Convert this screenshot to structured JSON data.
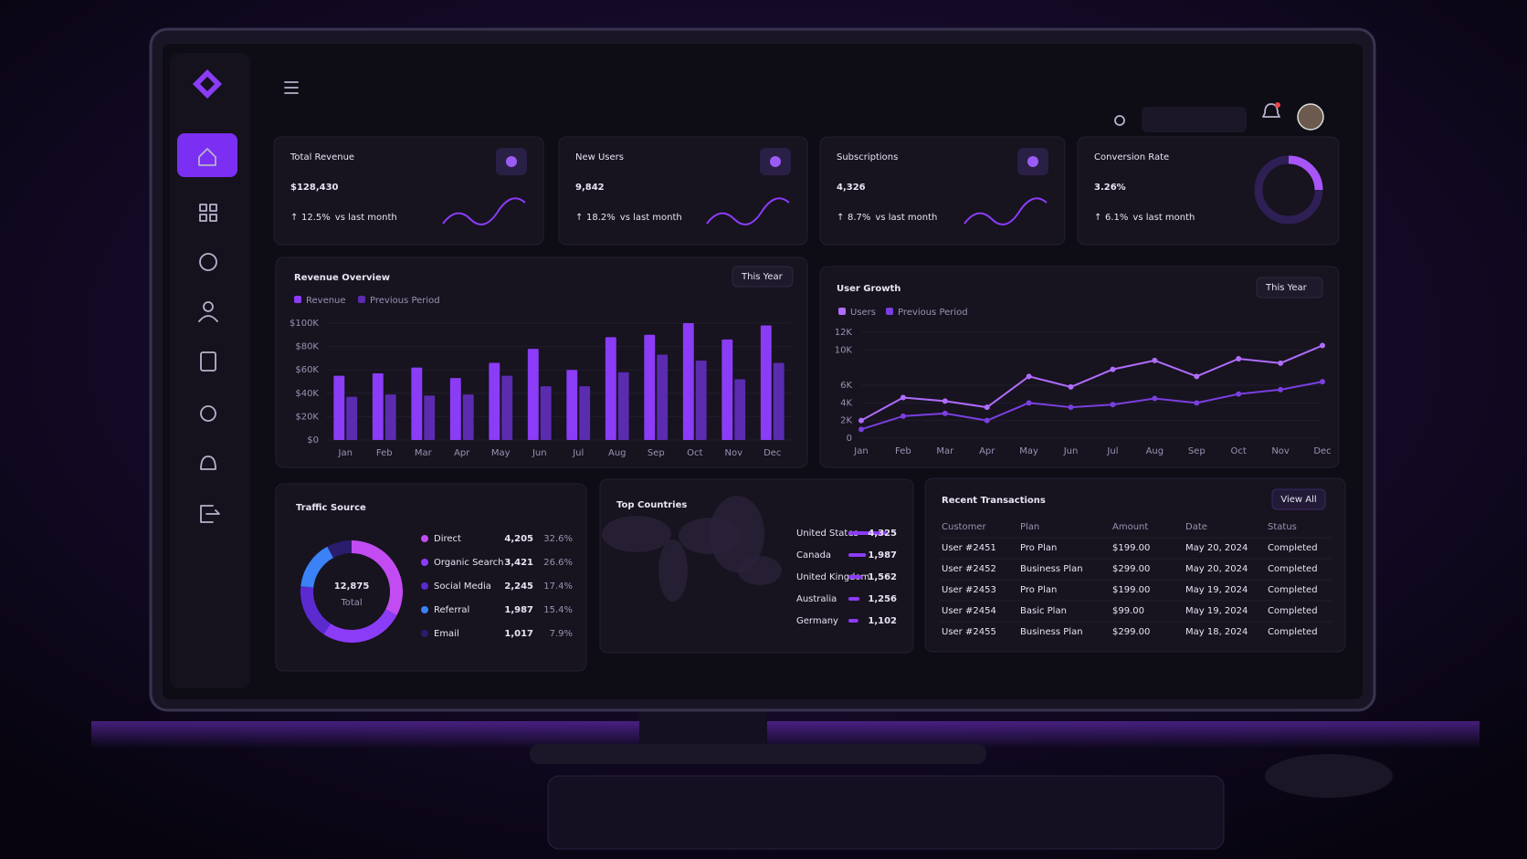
{
  "kpis": [
    {
      "title": "Total Revenue",
      "value": "$128,430",
      "change": "12.5%",
      "note": "vs last month"
    },
    {
      "title": "New Users",
      "value": "9,842",
      "change": "18.2%",
      "note": "vs last month"
    },
    {
      "title": "Subscriptions",
      "value": "4,326",
      "change": "8.7%",
      "note": "vs last month"
    },
    {
      "title": "Conversion Rate",
      "value": "3.26%",
      "change": "6.1%",
      "note": "vs last month"
    }
  ],
  "chart_data": [
    {
      "type": "bar",
      "title": "Revenue Overview",
      "period": "This Year",
      "categories": [
        "Jan",
        "Feb",
        "Mar",
        "Apr",
        "May",
        "Jun",
        "Jul",
        "Aug",
        "Sep",
        "Oct",
        "Nov",
        "Dec"
      ],
      "series": [
        {
          "name": "Revenue",
          "color": "#8b3cf7",
          "values": [
            55000,
            57000,
            62000,
            53000,
            66000,
            78000,
            60000,
            88000,
            90000,
            100000,
            86000,
            98000
          ]
        },
        {
          "name": "Previous Period",
          "color": "#5b2bb0",
          "values": [
            37000,
            39000,
            38000,
            39000,
            55000,
            46000,
            46000,
            58000,
            73000,
            68000,
            52000,
            66000
          ]
        }
      ],
      "ylim": [
        0,
        100000
      ],
      "yticks": [
        {
          "value": 0,
          "label": "$0"
        },
        {
          "value": 20000,
          "label": "$20K"
        },
        {
          "value": 40000,
          "label": "$40K"
        },
        {
          "value": 60000,
          "label": "$60K"
        },
        {
          "value": 80000,
          "label": "$80K"
        },
        {
          "value": 100000,
          "label": "$100K"
        }
      ]
    },
    {
      "type": "line",
      "title": "User Growth",
      "period": "This Year",
      "categories": [
        "Jan",
        "Feb",
        "Mar",
        "Apr",
        "May",
        "Jun",
        "Jul",
        "Aug",
        "Sep",
        "Oct",
        "Nov",
        "Dec"
      ],
      "series": [
        {
          "name": "Users",
          "color": "#b06cff",
          "values": [
            2000,
            4600,
            4200,
            3500,
            7000,
            5800,
            7800,
            8800,
            7000,
            9000,
            8500,
            10500
          ]
        },
        {
          "name": "Previous Period",
          "color": "#7a3fe0",
          "values": [
            1000,
            2500,
            2800,
            2000,
            4000,
            3500,
            3800,
            4500,
            4000,
            5000,
            5500,
            6400
          ]
        }
      ],
      "ylim": [
        0,
        12000
      ],
      "yticks": [
        0,
        {
          "value": 2000,
          "label": "2K"
        },
        {
          "value": 4000,
          "label": "4K"
        },
        {
          "value": 6000,
          "label": "6K"
        },
        {
          "value": 10000,
          "label": "10K"
        },
        {
          "value": 12000,
          "label": "12K"
        }
      ]
    },
    {
      "type": "pie",
      "title": "Traffic Source",
      "total": "12,875",
      "total_label": "Total",
      "categories": [
        "Direct",
        "Organic Search",
        "Social Media",
        "Referral",
        "Email"
      ],
      "values": [
        4205,
        3421,
        2245,
        1987,
        1017
      ],
      "value_labels": [
        "4,205",
        "3,421",
        "2,245",
        "1,987",
        "1,017"
      ],
      "shares": [
        "32.6%",
        "26.6%",
        "17.4%",
        "15.4%",
        "7.9%"
      ],
      "colors": [
        "#c24cf2",
        "#8b3cf7",
        "#5b2bd0",
        "#3b82f6",
        "#2a1d6e"
      ]
    },
    {
      "type": "hbar",
      "title": "Top Countries",
      "color": "#8b3cf7",
      "categories": [
        "United States",
        "Canada",
        "United Kingdom",
        "Australia",
        "Germany"
      ],
      "values": [
        4325,
        1987,
        1562,
        1256,
        1102
      ],
      "value_labels": [
        "4,325",
        "1,987",
        "1,562",
        "1,256",
        "1,102"
      ]
    }
  ],
  "transactions": {
    "title": "Recent Transactions",
    "action": "View All",
    "columns": [
      "Customer",
      "Plan",
      "Amount",
      "Date",
      "Status"
    ],
    "rows": [
      [
        "User #2451",
        "Pro Plan",
        "$199.00",
        "May 20, 2024",
        "Completed"
      ],
      [
        "User #2452",
        "Business Plan",
        "$299.00",
        "May 20, 2024",
        "Completed"
      ],
      [
        "User #2453",
        "Pro Plan",
        "$199.00",
        "May 19, 2024",
        "Completed"
      ],
      [
        "User #2454",
        "Basic Plan",
        "$99.00",
        "May 19, 2024",
        "Completed"
      ],
      [
        "User #2455",
        "Business Plan",
        "$299.00",
        "May 18, 2024",
        "Completed"
      ]
    ]
  }
}
